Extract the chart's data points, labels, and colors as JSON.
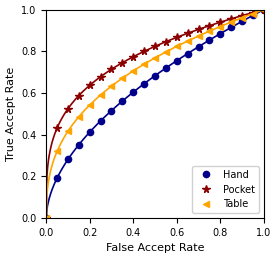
{
  "title": "",
  "xlabel": "False Accept Rate",
  "ylabel": "True Accept Rate",
  "xlim": [
    0.0,
    1.0
  ],
  "ylim": [
    0.0,
    1.0
  ],
  "xticks": [
    0.0,
    0.2,
    0.4,
    0.6,
    0.8,
    1.0
  ],
  "yticks": [
    0.0,
    0.2,
    0.4,
    0.6,
    0.8,
    1.0
  ],
  "lines": [
    {
      "label": "Hand",
      "color": "#00008B",
      "marker": "o",
      "markersize": 4.5,
      "linewidth": 1.2,
      "power": 0.55,
      "n_markers": 21
    },
    {
      "label": "Pocket",
      "color": "#8B0000",
      "marker": "*",
      "markersize": 5.5,
      "linewidth": 1.2,
      "power": 0.28,
      "n_markers": 21
    },
    {
      "label": "Table",
      "color": "#FFA500",
      "marker": "<",
      "markersize": 5,
      "linewidth": 1.2,
      "power": 0.38,
      "n_markers": 21
    }
  ],
  "legend_loc": "lower right",
  "legend_fontsize": 7,
  "figsize": [
    2.77,
    2.59
  ],
  "dpi": 100,
  "tick_labelsize": 7,
  "label_fontsize": 8
}
